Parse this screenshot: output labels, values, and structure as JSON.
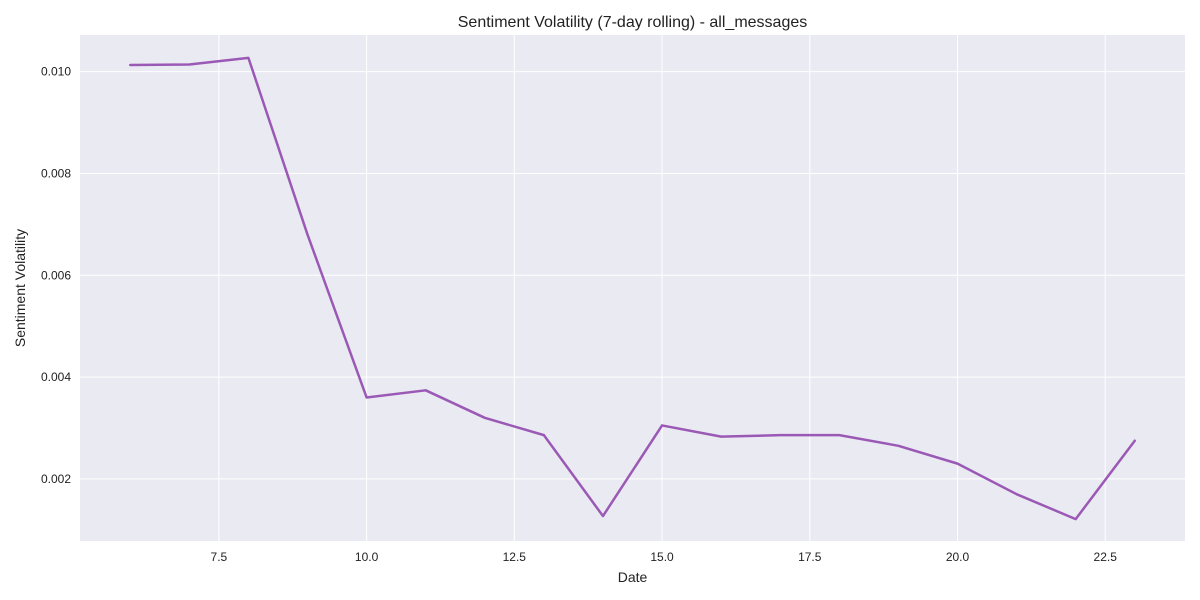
{
  "chart_data": {
    "type": "line",
    "title": "Sentiment Volatility (7-day rolling) - all_messages",
    "xlabel": "Date",
    "ylabel": "Sentiment Volatility",
    "xlim": [
      5.15,
      23.85
    ],
    "ylim": [
      0.00078,
      0.01072
    ],
    "x_ticks": [
      7.5,
      10.0,
      12.5,
      15.0,
      17.5,
      20.0,
      22.5
    ],
    "x_tick_labels": [
      "7.5",
      "10.0",
      "12.5",
      "15.0",
      "17.5",
      "20.0",
      "22.5"
    ],
    "y_ticks": [
      0.002,
      0.004,
      0.006,
      0.008,
      0.01
    ],
    "y_tick_labels": [
      "0.002",
      "0.004",
      "0.006",
      "0.008",
      "0.010"
    ],
    "grid": true,
    "series": [
      {
        "x": [
          6,
          7,
          8,
          9,
          10,
          11,
          12,
          13,
          14,
          15,
          16,
          17,
          18,
          19,
          20,
          21,
          22,
          23
        ],
        "y": [
          0.01013,
          0.01014,
          0.01027,
          0.0068,
          0.0036,
          0.00374,
          0.0032,
          0.00286,
          0.00127,
          0.00305,
          0.00283,
          0.00286,
          0.00286,
          0.00265,
          0.0023,
          0.0017,
          0.00121,
          0.00275
        ],
        "color": "#9b59b6"
      }
    ],
    "colors": {
      "plot_background": "#eaeaf2",
      "grid": "#ffffff",
      "line": "#9b59b6"
    }
  }
}
